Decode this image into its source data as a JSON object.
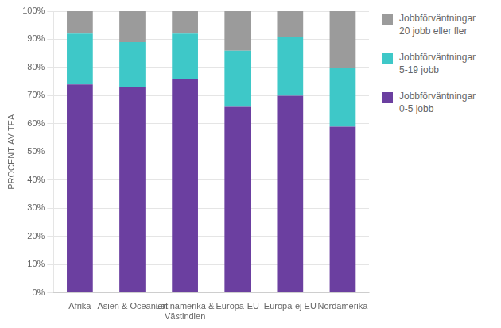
{
  "chart_data": {
    "type": "bar",
    "stacked": true,
    "categories": [
      "Afrika",
      "Asien & Oceanien",
      "Latinamerika &\nVästindien",
      "Europa-EU",
      "Europa-ej EU",
      "Nordamerika"
    ],
    "series": [
      {
        "name": "Jobbförväntningar\n0-5 jobb",
        "color": "#6B3FA0",
        "values": [
          74,
          73,
          76,
          66,
          70,
          59
        ]
      },
      {
        "name": "Jobbförväntningar\n5-19 jobb",
        "color": "#3EC8C8",
        "values": [
          18,
          16,
          16,
          20,
          21,
          21
        ]
      },
      {
        "name": "Jobbförväntningar\n20 jobb eller fler",
        "color": "#9B9B9B",
        "values": [
          8,
          11,
          8,
          14,
          9,
          20
        ]
      }
    ],
    "ylabel": "PROCENT AV TEA",
    "ylim": [
      0,
      100
    ],
    "yticks": [
      {
        "value": 0,
        "label": "0%"
      },
      {
        "value": 10,
        "label": "10%"
      },
      {
        "value": 20,
        "label": "20%"
      },
      {
        "value": 30,
        "label": "30%"
      },
      {
        "value": 40,
        "label": "40%"
      },
      {
        "value": 50,
        "label": "50%"
      },
      {
        "value": 60,
        "label": "60%"
      },
      {
        "value": 70,
        "label": "70%"
      },
      {
        "value": 80,
        "label": "80%"
      },
      {
        "value": 90,
        "label": "90%"
      },
      {
        "value": 100,
        "label": "100%"
      }
    ],
    "grid": true,
    "legend": "right"
  }
}
